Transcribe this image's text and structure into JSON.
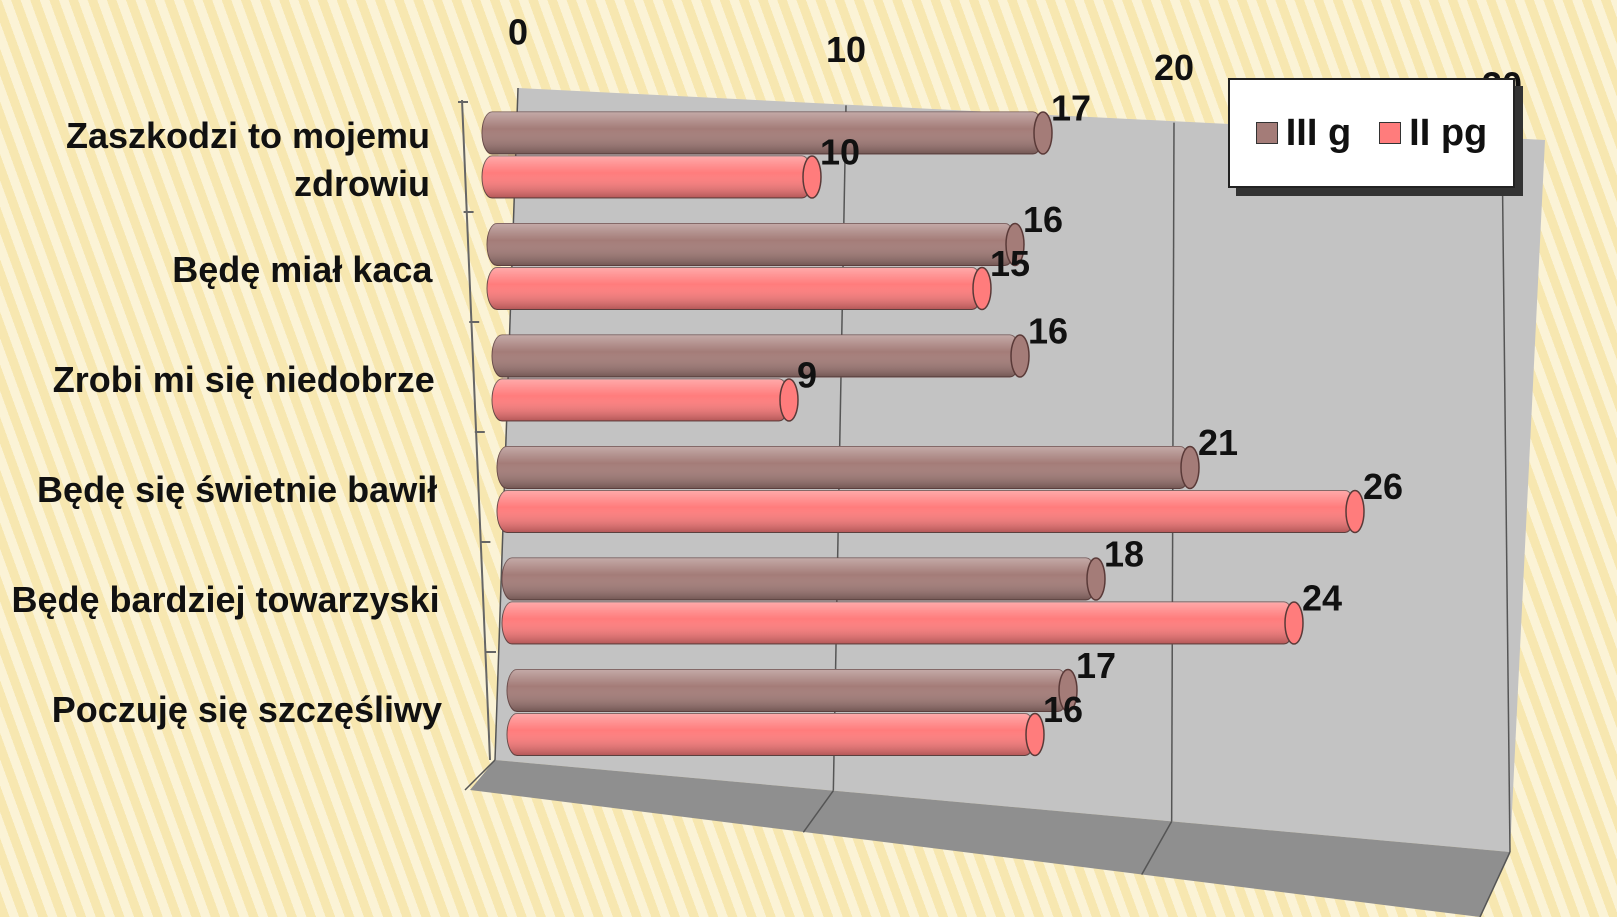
{
  "chart_data": {
    "type": "bar",
    "orientation": "horizontal",
    "categories": [
      "Zaszkodzi to mojemu zdrowiu",
      "Będę miał kaca",
      "Zrobi mi się niedobrze",
      "Będę się świetnie bawił",
      "Będę bardziej towarzyski",
      "Poczuję się szczęśliwy"
    ],
    "series": [
      {
        "name": "III g",
        "color": "#a47c78",
        "values": [
          17,
          16,
          16,
          21,
          18,
          17
        ]
      },
      {
        "name": "II pg",
        "color": "#ff7c7c",
        "values": [
          10,
          15,
          9,
          26,
          24,
          16
        ]
      }
    ],
    "xlim": [
      0,
      30
    ],
    "xticks": [
      0,
      10,
      20,
      30
    ],
    "grid": true,
    "legend": "top-right"
  }
}
